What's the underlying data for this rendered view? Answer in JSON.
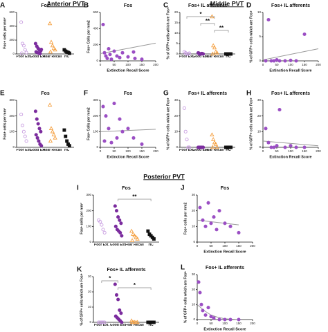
{
  "sections": [
    "Anterior PVT",
    "Middle PVT",
    "Posterior PVT"
  ],
  "chart_data": [
    {
      "type": "strip",
      "panel": "A",
      "title": "Fos",
      "y_label": "Fos+ cells per mm²",
      "categories": [
        "Poor Ext.",
        "Good Ext.",
        "Fear Recall",
        "HC"
      ],
      "colors": [
        "#c79be0",
        "#7b2c9e",
        "#f5a040",
        "#111111"
      ],
      "markers": [
        "circle-open",
        "circle",
        "triangle-open",
        "square"
      ],
      "points": [
        [
          460,
          150,
          120,
          60,
          20,
          10
        ],
        [
          150,
          110,
          80,
          60,
          45,
          30,
          20,
          10,
          5,
          65
        ],
        [
          440,
          170,
          120,
          80,
          60,
          30
        ],
        [
          60,
          40,
          30,
          20,
          10
        ]
      ],
      "ylim": [
        0,
        600
      ],
      "yticks": [
        0,
        200,
        400,
        600
      ]
    },
    {
      "type": "scatter",
      "panel": "B",
      "title": "Fos",
      "x_label": "Extinction Recall Score",
      "y_label": "Fos+ Cells per mm2",
      "color": "#9b4fc4",
      "x": [
        10,
        15,
        20,
        25,
        30,
        35,
        40,
        50,
        60,
        70,
        80,
        100,
        120,
        125,
        150
      ],
      "y": [
        450,
        100,
        60,
        30,
        150,
        80,
        20,
        120,
        60,
        40,
        100,
        50,
        110,
        30,
        20
      ],
      "fit": {
        "x": [
          0,
          200
        ],
        "y": [
          90,
          220
        ]
      },
      "xlim": [
        0,
        200
      ],
      "xticks": [
        0,
        50,
        100,
        150,
        200
      ],
      "ylim": [
        0,
        600
      ],
      "yticks": [
        0,
        200,
        400,
        600
      ]
    },
    {
      "type": "strip",
      "panel": "C",
      "title": "Fos+ IL afferents",
      "y_label": "% of GFP+ cells which are Fos+",
      "categories": [
        "Poor Ext.",
        "Good Ext.",
        "Fear Recall",
        "HC"
      ],
      "colors": [
        "#c79be0",
        "#7b2c9e",
        "#f5a040",
        "#111111"
      ],
      "markers": [
        "circle-open",
        "circle",
        "triangle-open",
        "square"
      ],
      "points": [
        [
          1,
          0.5,
          0,
          0,
          0.3
        ],
        [
          0.5,
          0,
          0,
          0.2,
          0,
          0.4,
          0,
          0.1
        ],
        [
          18,
          4,
          3,
          1,
          0.5,
          0
        ],
        [
          0,
          0,
          0,
          0,
          0
        ]
      ],
      "annotations": [
        {
          "text": "*",
          "between": [
            0,
            2
          ]
        },
        {
          "text": "**",
          "between": [
            1,
            2
          ]
        },
        {
          "text": "**",
          "between": [
            2,
            3
          ]
        }
      ],
      "ylim": [
        0,
        20
      ],
      "yticks": [
        0,
        5,
        10,
        15,
        20
      ]
    },
    {
      "type": "scatter",
      "panel": "D",
      "title": "Fos+ IL afferents",
      "x_label": "Extinction Recall Score",
      "y_label": "% of GFP+ cells which are Fos+",
      "color": "#9b4fc4",
      "x": [
        10,
        20,
        30,
        40,
        50,
        60,
        80,
        100,
        120,
        150
      ],
      "y": [
        0,
        8.5,
        0,
        0,
        0.2,
        0,
        0,
        0.1,
        0,
        5.5
      ],
      "fit": {
        "x": [
          0,
          200
        ],
        "y": [
          0.2,
          2.5
        ]
      },
      "xlim": [
        0,
        200
      ],
      "xticks": [
        0,
        50,
        100,
        150,
        200
      ],
      "ylim": [
        0,
        10
      ],
      "yticks": [
        0,
        5,
        10
      ]
    },
    {
      "type": "strip",
      "panel": "E",
      "title": "Fos",
      "y_label": "Fos+ cells per mm²",
      "categories": [
        "Poor Ext.",
        "Good Ext.",
        "Fear Recall",
        "HC"
      ],
      "colors": [
        "#c79be0",
        "#7b2c9e",
        "#f5a040",
        "#111111"
      ],
      "markers": [
        "circle-open",
        "circle",
        "triangle-open",
        "square"
      ],
      "points": [
        [
          210,
          140,
          100,
          70,
          40
        ],
        [
          230,
          180,
          150,
          120,
          100,
          80,
          60,
          40,
          20,
          10
        ],
        [
          270,
          120,
          100,
          80,
          60,
          40
        ],
        [
          110,
          70,
          40,
          20,
          10
        ]
      ],
      "ylim": [
        0,
        300
      ],
      "yticks": [
        0,
        100,
        200,
        300
      ]
    },
    {
      "type": "scatter",
      "panel": "F",
      "title": "Fos",
      "x_label": "Extinction Recall Score",
      "y_label": "Fos+ Cells per mm2",
      "color": "#9b4fc4",
      "x": [
        10,
        15,
        20,
        30,
        40,
        50,
        60,
        70,
        80,
        100,
        120,
        150
      ],
      "y": [
        260,
        40,
        200,
        120,
        30,
        280,
        60,
        180,
        100,
        120,
        60,
        20
      ],
      "fit": {
        "x": [
          0,
          200
        ],
        "y": [
          100,
          115
        ]
      },
      "xlim": [
        0,
        200
      ],
      "xticks": [
        0,
        50,
        100,
        150,
        200
      ],
      "ylim": [
        0,
        300
      ],
      "yticks": [
        0,
        100,
        200,
        300
      ]
    },
    {
      "type": "strip",
      "panel": "G",
      "title": "Fos+ IL afferents",
      "y_label": "% of GFP+ cells which are Fos+",
      "categories": [
        "Poor Ext.",
        "Good Ext.",
        "Fear Recall",
        "HC"
      ],
      "colors": [
        "#c79be0",
        "#7b2c9e",
        "#f5a040",
        "#111111"
      ],
      "markers": [
        "circle-open",
        "circle",
        "triangle-open",
        "square"
      ],
      "points": [
        [
          25,
          10,
          5,
          0,
          0
        ],
        [
          0,
          0,
          0,
          0,
          0,
          0,
          0,
          0
        ],
        [
          8,
          5,
          3,
          2,
          0,
          0
        ],
        [
          0,
          0,
          0,
          0,
          0
        ]
      ],
      "ylim": [
        0,
        30
      ],
      "yticks": [
        0,
        10,
        20,
        30
      ]
    },
    {
      "type": "scatter",
      "panel": "H",
      "title": "Fos+ IL afferents",
      "x_label": "Extinction Recall Score",
      "y_label": "% of GFP+ cells which are Fos+",
      "color": "#9b4fc4",
      "x": [
        10,
        20,
        30,
        40,
        50,
        60,
        80,
        100,
        120,
        150
      ],
      "y": [
        12,
        3,
        0,
        0,
        1,
        24,
        0,
        1,
        0,
        0
      ],
      "fit": {
        "x": [
          0,
          200
        ],
        "y": [
          4,
          1
        ]
      },
      "xlim": [
        0,
        200
      ],
      "xticks": [
        0,
        50,
        100,
        150,
        200
      ],
      "ylim": [
        0,
        30
      ],
      "yticks": [
        0,
        10,
        20,
        30
      ]
    },
    {
      "type": "strip",
      "panel": "I",
      "title": "Fos",
      "y_label": "Fos+ cells per mm²",
      "categories": [
        "Poor Ext.",
        "Good Ext.",
        "Fear Recall",
        "HC"
      ],
      "colors": [
        "#c79be0",
        "#7b2c9e",
        "#f5a040",
        "#111111"
      ],
      "markers": [
        "circle-open",
        "circle",
        "triangle-open",
        "square"
      ],
      "points": [
        [
          140,
          130,
          110,
          80,
          60
        ],
        [
          230,
          200,
          160,
          140,
          120,
          100,
          80,
          70,
          60,
          40
        ],
        [
          70,
          50,
          40,
          30,
          20,
          10
        ],
        [
          70,
          50,
          40,
          30,
          20
        ]
      ],
      "annotations": [
        {
          "text": "**",
          "between": [
            1,
            3
          ]
        }
      ],
      "ylim": [
        0,
        300
      ],
      "yticks": [
        0,
        100,
        200,
        300
      ]
    },
    {
      "type": "scatter",
      "panel": "J",
      "title": "Fos",
      "x_label": "Extinction Recall Score",
      "y_label": "Fos+ cells per mm2",
      "color": "#9b4fc4",
      "x": [
        10,
        20,
        30,
        40,
        50,
        60,
        70,
        80,
        100,
        120,
        150
      ],
      "y": [
        22,
        14,
        10,
        25,
        12,
        16,
        8,
        20,
        12,
        10,
        6
      ],
      "fit": {
        "x": [
          0,
          150
        ],
        "y": [
          14,
          11
        ]
      },
      "xlim": [
        0,
        200
      ],
      "xticks": [
        0,
        50,
        100,
        150,
        200
      ],
      "ylim": [
        0,
        30
      ],
      "yticks": [
        0,
        10,
        20,
        30
      ]
    },
    {
      "type": "strip",
      "panel": "K",
      "title": "Fos+ IL afferents",
      "y_label": "% of GFP+ cells which are Fos+",
      "categories": [
        "Poor Ext.",
        "Good Ext.",
        "Fear Recall",
        "HC"
      ],
      "colors": [
        "#c79be0",
        "#7b2c9e",
        "#f5a040",
        "#111111"
      ],
      "markers": [
        "circle-open",
        "circle",
        "triangle-open",
        "square"
      ],
      "points": [
        [
          0,
          0,
          0,
          0,
          0
        ],
        [
          25,
          18,
          15,
          8,
          6,
          4,
          3,
          2,
          1,
          0
        ],
        [
          1,
          0,
          0,
          0,
          0,
          0
        ],
        [
          0,
          0,
          0,
          0,
          0
        ]
      ],
      "annotations": [
        {
          "text": "*",
          "between": [
            0,
            1
          ]
        },
        {
          "text": "*",
          "between": [
            1,
            3
          ]
        }
      ],
      "ylim": [
        0,
        30
      ],
      "yticks": [
        0,
        10,
        20,
        30
      ]
    },
    {
      "type": "scatter",
      "panel": "L",
      "title": "Fos+ IL afferents",
      "x_label": "Extinction Recall Score",
      "y_label": "% of GFP+ cells which are Fos+",
      "color": "#9b4fc4",
      "x": [
        5,
        10,
        15,
        20,
        30,
        40,
        50,
        60,
        80,
        100,
        120,
        150
      ],
      "y": [
        25,
        18,
        10,
        6,
        3,
        8,
        2,
        1,
        0,
        0,
        0,
        0
      ],
      "fit": {
        "x": [
          0,
          25,
          50,
          75,
          100,
          150
        ],
        "y": [
          10,
          6,
          3,
          1.5,
          0.5,
          0
        ]
      },
      "xlim": [
        0,
        200
      ],
      "xticks": [
        0,
        50,
        100,
        150,
        200
      ],
      "ylim": [
        0,
        30
      ],
      "yticks": [
        0,
        10,
        20,
        30
      ]
    }
  ]
}
